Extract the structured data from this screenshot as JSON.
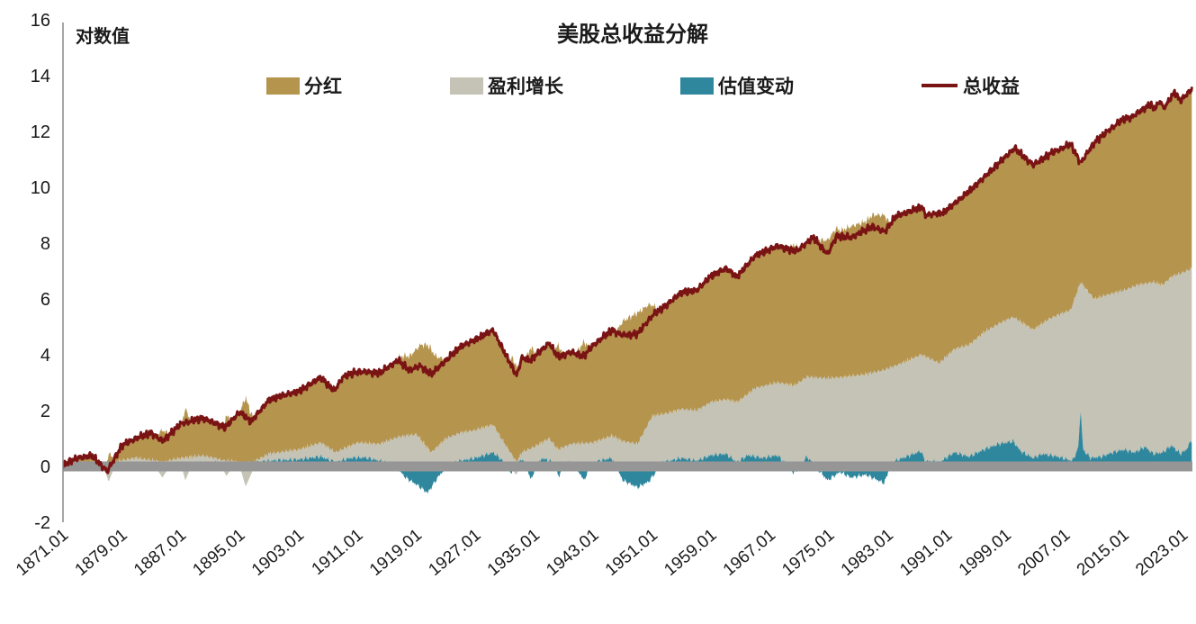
{
  "title": "美股总收益分解",
  "y_axis": {
    "unit_label": "对数值",
    "ticks": [
      "16",
      "14",
      "12",
      "10",
      "8",
      "6",
      "4",
      "2",
      "0",
      "-2"
    ],
    "tick_values": [
      16,
      14,
      12,
      10,
      8,
      6,
      4,
      2,
      0,
      -2
    ],
    "min": -2,
    "max": 16
  },
  "x_axis": {
    "tick_labels": [
      "1871.01",
      "1879.01",
      "1887.01",
      "1895.01",
      "1903.01",
      "1911.01",
      "1919.01",
      "1927.01",
      "1935.01",
      "1943.01",
      "1951.01",
      "1959.01",
      "1967.01",
      "1975.01",
      "1983.01",
      "1991.01",
      "1999.01",
      "2007.01",
      "2015.01",
      "2023.01"
    ],
    "tick_years": [
      1871,
      1879,
      1887,
      1895,
      1903,
      1911,
      1919,
      1927,
      1935,
      1943,
      1951,
      1959,
      1967,
      1975,
      1983,
      1991,
      1999,
      2007,
      2015,
      2023
    ],
    "start_year": 1871.0,
    "end_year": 2024.33
  },
  "legend": [
    {
      "label": "分红",
      "color": "#B5944E",
      "type": "area"
    },
    {
      "label": "盈利增长",
      "color": "#C4C3B5",
      "type": "area"
    },
    {
      "label": "估值变动",
      "color": "#2F879D",
      "type": "area"
    },
    {
      "label": "总收益",
      "color": "#7A1414",
      "type": "line"
    }
  ],
  "colors": {
    "dividend_area": "#B5944E",
    "earnings_area": "#C4C3B5",
    "valuation_area": "#2F879D",
    "total_line": "#7A1414",
    "zero_band": "#969696",
    "axis_line": "#8A8A8A",
    "text": "#1a1a1a",
    "background": "#ffffff"
  },
  "chart_data": {
    "type": "area",
    "title": "美股总收益分解",
    "ylabel": "对数值",
    "x_unit": "year.month (monthly series 1871.01 - 2024.04)",
    "xlim": [
      1871.0,
      2024.33
    ],
    "ylim": [
      -2,
      16
    ],
    "grid": false,
    "legend_position": "top",
    "stacking": "components stacked from zero line; negative segments drawn below zero; red line = cumulative log total return",
    "series": [
      {
        "name": "估值变动",
        "role": "area-boundary",
        "color": "#2F879D",
        "note": "cumulative log valuation-change contribution; band between 0 and value",
        "anchors": [
          [
            1871,
            0.03
          ],
          [
            1875,
            0.05
          ],
          [
            1880,
            0.07
          ],
          [
            1885,
            0.08
          ],
          [
            1890,
            0.12
          ],
          [
            1895,
            0.1
          ],
          [
            1900,
            0.22
          ],
          [
            1903,
            0.25
          ],
          [
            1906,
            0.35
          ],
          [
            1908,
            0.15
          ],
          [
            1910,
            0.3
          ],
          [
            1912,
            0.32
          ],
          [
            1914,
            0.2
          ],
          [
            1916,
            0.05
          ],
          [
            1917.5,
            -0.4
          ],
          [
            1919,
            -0.65
          ],
          [
            1920.5,
            -0.95
          ],
          [
            1922,
            -0.35
          ],
          [
            1923.5,
            0.1
          ],
          [
            1925,
            0.2
          ],
          [
            1927,
            0.3
          ],
          [
            1929.4,
            0.5
          ],
          [
            1930.5,
            0.25
          ],
          [
            1932,
            -0.25
          ],
          [
            1933.3,
            0.3
          ],
          [
            1934.5,
            -0.45
          ],
          [
            1936,
            0.3
          ],
          [
            1937.5,
            0.15
          ],
          [
            1938.3,
            -0.35
          ],
          [
            1939.5,
            0.2
          ],
          [
            1940.5,
            0.05
          ],
          [
            1941.7,
            -0.5
          ],
          [
            1943,
            0.15
          ],
          [
            1945.5,
            0.3
          ],
          [
            1947,
            -0.5
          ],
          [
            1949,
            -0.75
          ],
          [
            1950.5,
            -0.55
          ],
          [
            1952.5,
            0.15
          ],
          [
            1955,
            0.3
          ],
          [
            1957,
            0.2
          ],
          [
            1959,
            0.4
          ],
          [
            1961,
            0.45
          ],
          [
            1962.5,
            0.15
          ],
          [
            1964,
            0.4
          ],
          [
            1966,
            0.3
          ],
          [
            1968,
            0.4
          ],
          [
            1970.3,
            -0.25
          ],
          [
            1972,
            0.35
          ],
          [
            1974.8,
            -0.5
          ],
          [
            1976.5,
            -0.2
          ],
          [
            1978,
            -0.4
          ],
          [
            1980,
            -0.3
          ],
          [
            1982.5,
            -0.6
          ],
          [
            1983.5,
            0.15
          ],
          [
            1985,
            0.3
          ],
          [
            1987.5,
            0.55
          ],
          [
            1988,
            0.2
          ],
          [
            1990,
            0.15
          ],
          [
            1992,
            0.5
          ],
          [
            1994,
            0.35
          ],
          [
            1996,
            0.6
          ],
          [
            1998,
            0.8
          ],
          [
            2000,
            0.9
          ],
          [
            2001,
            0.55
          ],
          [
            2002.7,
            0.3
          ],
          [
            2004,
            0.45
          ],
          [
            2006,
            0.35
          ],
          [
            2008,
            0.2
          ],
          [
            2008.8,
            0.6
          ],
          [
            2009.15,
            2.0
          ],
          [
            2009.5,
            0.6
          ],
          [
            2010.5,
            0.3
          ],
          [
            2012,
            0.35
          ],
          [
            2013.5,
            0.5
          ],
          [
            2015,
            0.6
          ],
          [
            2016.5,
            0.5
          ],
          [
            2017.9,
            0.7
          ],
          [
            2019,
            0.45
          ],
          [
            2020.3,
            0.5
          ],
          [
            2021.5,
            0.75
          ],
          [
            2022.7,
            0.45
          ],
          [
            2023.5,
            0.6
          ],
          [
            2024.33,
            1.0
          ]
        ]
      },
      {
        "name": "盈利增长",
        "role": "area-boundary",
        "color": "#C4C3B5",
        "note": "upper boundary of earnings-growth band (= bottom of dividend band)",
        "anchors": [
          [
            1871,
            0.06
          ],
          [
            1874,
            0.15
          ],
          [
            1877,
            0.1
          ],
          [
            1879,
            0.22
          ],
          [
            1881,
            0.3
          ],
          [
            1884.5,
            0.15
          ],
          [
            1887,
            0.3
          ],
          [
            1890,
            0.38
          ],
          [
            1893,
            0.2
          ],
          [
            1896.5,
            0.12
          ],
          [
            1899,
            0.45
          ],
          [
            1903,
            0.6
          ],
          [
            1906,
            0.85
          ],
          [
            1908,
            0.5
          ],
          [
            1911,
            0.85
          ],
          [
            1914,
            0.8
          ],
          [
            1916.5,
            1.05
          ],
          [
            1919,
            1.15
          ],
          [
            1921,
            0.5
          ],
          [
            1923,
            1.0
          ],
          [
            1925,
            1.2
          ],
          [
            1927,
            1.3
          ],
          [
            1929.4,
            1.5
          ],
          [
            1930.5,
            1.0
          ],
          [
            1932.6,
            0.15
          ],
          [
            1933.3,
            0.5
          ],
          [
            1935,
            0.7
          ],
          [
            1937,
            1.0
          ],
          [
            1938.2,
            0.6
          ],
          [
            1940,
            0.8
          ],
          [
            1943,
            0.85
          ],
          [
            1945.5,
            1.1
          ],
          [
            1947,
            0.9
          ],
          [
            1949,
            0.8
          ],
          [
            1951,
            1.8
          ],
          [
            1953,
            1.9
          ],
          [
            1955,
            2.05
          ],
          [
            1957,
            2.0
          ],
          [
            1959,
            2.3
          ],
          [
            1961,
            2.4
          ],
          [
            1962.5,
            2.3
          ],
          [
            1965,
            2.8
          ],
          [
            1968,
            3.0
          ],
          [
            1970.3,
            2.9
          ],
          [
            1972,
            3.2
          ],
          [
            1974.8,
            3.15
          ],
          [
            1977,
            3.2
          ],
          [
            1980,
            3.3
          ],
          [
            1982.5,
            3.45
          ],
          [
            1984,
            3.6
          ],
          [
            1987.5,
            4.0
          ],
          [
            1990,
            3.7
          ],
          [
            1992,
            4.2
          ],
          [
            1994,
            4.35
          ],
          [
            1996,
            4.8
          ],
          [
            1998,
            5.1
          ],
          [
            2000,
            5.35
          ],
          [
            2002.7,
            4.9
          ],
          [
            2005,
            5.3
          ],
          [
            2007.8,
            5.6
          ],
          [
            2009.15,
            6.6
          ],
          [
            2011,
            6.0
          ],
          [
            2013.5,
            6.2
          ],
          [
            2015,
            6.3
          ],
          [
            2017,
            6.5
          ],
          [
            2019,
            6.6
          ],
          [
            2020.3,
            6.5
          ],
          [
            2021.5,
            6.8
          ],
          [
            2022.7,
            6.9
          ],
          [
            2024.33,
            7.1
          ]
        ],
        "negative_wedge_anchors": [
          [
            1871,
            0
          ],
          [
            1876.5,
            0
          ],
          [
            1877.2,
            -0.55
          ],
          [
            1878,
            0
          ],
          [
            1883.5,
            0
          ],
          [
            1884.5,
            -0.4
          ],
          [
            1885.5,
            0
          ],
          [
            1887.1,
            0
          ],
          [
            1887.6,
            -0.5
          ],
          [
            1888.4,
            0
          ],
          [
            1892.5,
            0
          ],
          [
            1893.2,
            -0.35
          ],
          [
            1894,
            0
          ],
          [
            1895,
            0
          ],
          [
            1895.8,
            -0.72
          ],
          [
            1897,
            0
          ],
          [
            1907,
            0
          ],
          [
            1907.5,
            -0.15
          ],
          [
            1908.2,
            0
          ],
          [
            1920.6,
            0
          ],
          [
            1920.9,
            -0.15
          ],
          [
            1921.5,
            0
          ],
          [
            1931.8,
            0
          ],
          [
            1932.5,
            -0.3
          ],
          [
            1933.2,
            0
          ],
          [
            1937.7,
            0
          ],
          [
            1938,
            -0.15
          ],
          [
            1938.5,
            0
          ],
          [
            2024.33,
            0
          ]
        ]
      },
      {
        "name": "分红",
        "role": "area",
        "color": "#B5944E",
        "note": "dividend band between earnings upper boundary and stacked top; stacked top = total return minus negative components"
      },
      {
        "name": "总收益",
        "role": "line",
        "color": "#7A1414",
        "anchors": [
          [
            1871,
            0.06
          ],
          [
            1873,
            0.3
          ],
          [
            1875,
            0.38
          ],
          [
            1877,
            -0.18
          ],
          [
            1879,
            0.75
          ],
          [
            1881,
            1.02
          ],
          [
            1883,
            1.2
          ],
          [
            1884.5,
            0.9
          ],
          [
            1887,
            1.53
          ],
          [
            1890,
            1.73
          ],
          [
            1893,
            1.4
          ],
          [
            1895,
            1.95
          ],
          [
            1896.5,
            1.6
          ],
          [
            1899,
            2.4
          ],
          [
            1901,
            2.55
          ],
          [
            1903,
            2.68
          ],
          [
            1906,
            3.2
          ],
          [
            1907.8,
            2.7
          ],
          [
            1909,
            3.2
          ],
          [
            1911,
            3.4
          ],
          [
            1914,
            3.35
          ],
          [
            1916.5,
            3.8
          ],
          [
            1918,
            3.45
          ],
          [
            1919.5,
            3.6
          ],
          [
            1921,
            3.3
          ],
          [
            1923,
            3.8
          ],
          [
            1925,
            4.3
          ],
          [
            1927,
            4.55
          ],
          [
            1929.4,
            4.88
          ],
          [
            1930.5,
            4.3
          ],
          [
            1932.6,
            3.25
          ],
          [
            1933.3,
            3.9
          ],
          [
            1934.5,
            3.8
          ],
          [
            1937,
            4.42
          ],
          [
            1938.2,
            3.92
          ],
          [
            1940,
            4.1
          ],
          [
            1941.7,
            3.95
          ],
          [
            1943,
            4.35
          ],
          [
            1945.5,
            4.88
          ],
          [
            1947,
            4.7
          ],
          [
            1949,
            4.75
          ],
          [
            1951,
            5.4
          ],
          [
            1953,
            5.8
          ],
          [
            1955,
            6.25
          ],
          [
            1957,
            6.3
          ],
          [
            1959,
            6.83
          ],
          [
            1961,
            7.1
          ],
          [
            1962.5,
            6.8
          ],
          [
            1965,
            7.55
          ],
          [
            1968,
            7.9
          ],
          [
            1970.5,
            7.7
          ],
          [
            1972.9,
            8.2
          ],
          [
            1974.8,
            7.6
          ],
          [
            1976,
            8.25
          ],
          [
            1978,
            8.2
          ],
          [
            1980.9,
            8.6
          ],
          [
            1982.5,
            8.4
          ],
          [
            1984,
            8.95
          ],
          [
            1987.7,
            9.3
          ],
          [
            1988,
            9.0
          ],
          [
            1990.6,
            9.1
          ],
          [
            1994,
            9.85
          ],
          [
            1997,
            10.6
          ],
          [
            2000.2,
            11.4
          ],
          [
            2002.7,
            10.8
          ],
          [
            2005,
            11.2
          ],
          [
            2007.8,
            11.55
          ],
          [
            2009.15,
            10.87
          ],
          [
            2011,
            11.6
          ],
          [
            2013,
            12.05
          ],
          [
            2015,
            12.45
          ],
          [
            2016,
            12.5
          ],
          [
            2018.7,
            13.0
          ],
          [
            2019,
            12.8
          ],
          [
            2020.1,
            13.1
          ],
          [
            2020.35,
            12.8
          ],
          [
            2021.9,
            13.4
          ],
          [
            2022.7,
            13.1
          ],
          [
            2024.33,
            13.55
          ]
        ]
      }
    ]
  }
}
